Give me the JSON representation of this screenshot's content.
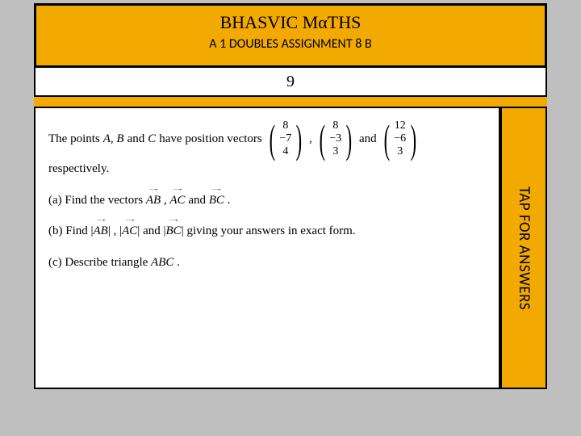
{
  "header": {
    "title": "BHASVIC MαTHS",
    "subtitle": "A 1 DOUBLES ASSIGNMENT 8 B"
  },
  "question_number": "9",
  "content": {
    "intro_lead": "The points ",
    "pts": "A, B",
    "intro_and1": " and ",
    "ptC": "C",
    "intro_tail": " have position vectors ",
    "vecA": {
      "r1": "8",
      "r2": "−7",
      "r3": "4"
    },
    "sep1": ", ",
    "vecB": {
      "r1": "8",
      "r2": "−3",
      "r3": "3"
    },
    "sep2": " and ",
    "vecC": {
      "r1": "12",
      "r2": "−6",
      "r3": "3"
    },
    "respectively": "respectively.",
    "partA_pre": "(a) Find the vectors ",
    "ab": "AB",
    "partA_c1": ", ",
    "ac": "AC",
    "partA_c2": " and ",
    "bc": "BC",
    "partA_end": ".",
    "partB_pre": "(b) Find ",
    "mab_l": "|",
    "mab": "AB",
    "mab_r": "|",
    "partB_c1": ", ",
    "mac_l": "|",
    "mac": "AC",
    "mac_r": "|",
    "partB_c2": " and ",
    "mbc_l": "|",
    "mbc": "BC",
    "mbc_r": "|",
    "partB_end": " giving your answers in exact form.",
    "partC_pre": "(c) Describe triangle ",
    "abc": "ABC",
    "partC_end": "."
  },
  "answers_tab": "TAP FOR ANSWERS",
  "style": {
    "bg": "#bfbfbf",
    "accent": "#f2a900",
    "border": "#000000",
    "text": "#000000",
    "title_fontsize": 22,
    "subtitle_fontsize": 16,
    "body_fontsize": 15,
    "slide_width": 636,
    "slide_height": 478
  }
}
